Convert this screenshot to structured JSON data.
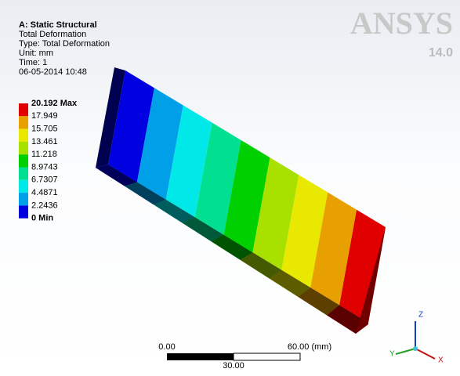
{
  "header": {
    "lines": [
      "A: Static Structural",
      "Total Deformation",
      "Type: Total Deformation",
      "Unit: mm",
      "Time: 1",
      "06-05-2014 10:48"
    ]
  },
  "legend": {
    "labels": [
      "20.192 Max",
      "17.949",
      "15.705",
      "13.461",
      "11.218",
      "8.9743",
      "6.7307",
      "4.4871",
      "2.2436",
      "0 Min"
    ],
    "colors": [
      "#e00000",
      "#e8a000",
      "#e8e800",
      "#a8e000",
      "#00d000",
      "#00e090",
      "#00e8e8",
      "#00a0e8",
      "#0000e0"
    ]
  },
  "logo": {
    "brand": "ANSYS",
    "version": "14.0"
  },
  "scale_bar": {
    "left": "0.00",
    "right": "60.00 (mm)",
    "middle": "30.00"
  },
  "triad": {
    "z": "Z",
    "y": "Y",
    "x": "X"
  }
}
